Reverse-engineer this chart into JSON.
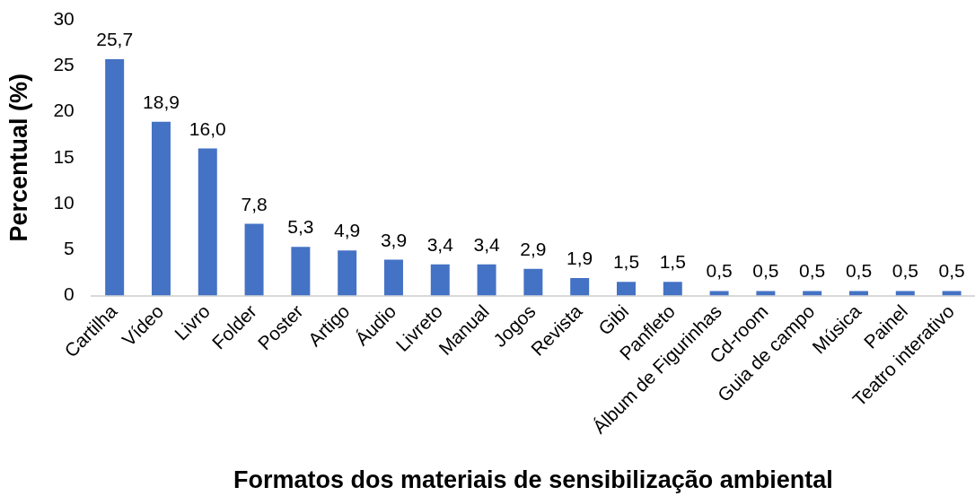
{
  "chart_data": {
    "type": "bar",
    "xlabel": "Formatos dos materiais de sensibilização ambiental",
    "ylabel": "Percentual (%)",
    "categories": [
      "Cartilha",
      "Vídeo",
      "Livro",
      "Folder",
      "Poster",
      "Artigo",
      "Áudio",
      "Livreto",
      "Manual",
      "Jogos",
      "Revista",
      "Gibi",
      "Panfleto",
      "Álbum de Figurinhas",
      "Cd-room",
      "Guia de campo",
      "Música",
      "Painel",
      "Teatro interativo"
    ],
    "values": [
      25.7,
      18.9,
      16.0,
      7.8,
      5.3,
      4.9,
      3.9,
      3.4,
      3.4,
      2.9,
      1.9,
      1.5,
      1.5,
      0.5,
      0.5,
      0.5,
      0.5,
      0.5,
      0.5
    ],
    "value_labels": [
      "25,7",
      "18,9",
      "16,0",
      "7,8",
      "5,3",
      "4,9",
      "3,9",
      "3,4",
      "3,4",
      "2,9",
      "1,9",
      "1,5",
      "1,5",
      "0,5",
      "0,5",
      "0,5",
      "0,5",
      "0,5",
      "0,5"
    ],
    "color": "#4472c4",
    "ylim": [
      0,
      30
    ],
    "yticks": [
      0,
      5,
      10,
      15,
      20,
      25,
      30
    ]
  }
}
